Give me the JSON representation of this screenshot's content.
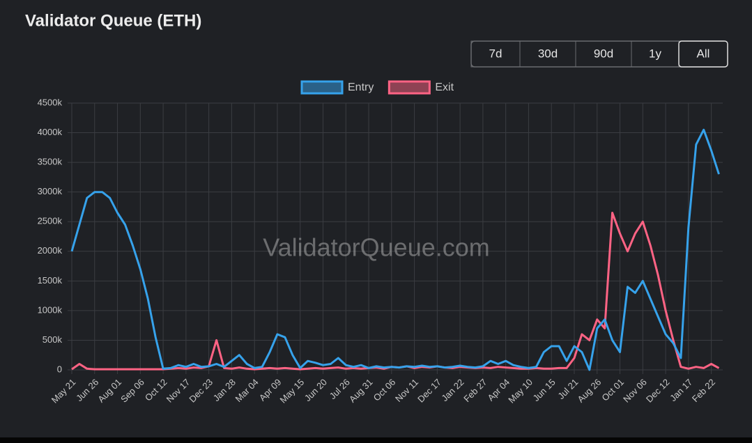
{
  "range_buttons": [
    "7d",
    "30d",
    "90d",
    "1y",
    "All"
  ],
  "active_button": "All",
  "chart_data": {
    "type": "line",
    "title": "Validator Queue (ETH)",
    "watermark": "ValidatorQueue.com",
    "categories": [
      "May 21",
      null,
      null,
      "Jun 26",
      null,
      null,
      "Aug 01",
      null,
      null,
      "Sep 06",
      null,
      null,
      "Oct 12",
      null,
      null,
      "Nov 17",
      null,
      null,
      "Dec 23",
      null,
      null,
      "Jan 28",
      null,
      null,
      "Mar 04",
      null,
      null,
      "Apr 09",
      null,
      null,
      "May 15",
      null,
      null,
      "Jun 20",
      null,
      null,
      "Jul 26",
      null,
      null,
      "Aug 31",
      null,
      null,
      "Oct 06",
      null,
      null,
      "Nov 11",
      null,
      null,
      "Dec 17",
      null,
      null,
      "Jan 22",
      null,
      null,
      "Feb 27",
      null,
      null,
      "Apr 04",
      null,
      null,
      "May 10",
      null,
      null,
      "Jun 15",
      null,
      null,
      "Jul 21",
      null,
      null,
      "Aug 26",
      null,
      null,
      "Oct 01",
      null,
      null,
      "Nov 06",
      null,
      null,
      "Dec 12",
      null,
      null,
      "Jan 17",
      null,
      null,
      "Feb 22",
      null
    ],
    "series": [
      {
        "name": "Entry",
        "color": "#36a2eb",
        "values": [
          2000,
          2450,
          2900,
          3000,
          3000,
          2900,
          2650,
          2450,
          2100,
          1700,
          1200,
          550,
          20,
          30,
          80,
          50,
          100,
          50,
          60,
          100,
          50,
          150,
          250,
          100,
          30,
          50,
          300,
          600,
          550,
          250,
          30,
          150,
          120,
          80,
          100,
          200,
          80,
          50,
          80,
          30,
          60,
          40,
          50,
          40,
          60,
          50,
          70,
          50,
          60,
          40,
          50,
          70,
          50,
          40,
          60,
          150,
          100,
          150,
          80,
          50,
          30,
          50,
          300,
          400,
          400,
          150,
          400,
          300,
          0,
          700,
          850,
          500,
          300,
          1400,
          1300,
          1500,
          1200,
          900,
          600,
          450,
          200,
          2400,
          3800,
          4050,
          3700,
          3300
        ]
      },
      {
        "name": "Exit",
        "color": "#ff6384",
        "values": [
          10,
          100,
          20,
          10,
          10,
          10,
          10,
          10,
          10,
          10,
          10,
          10,
          10,
          20,
          30,
          20,
          40,
          30,
          60,
          500,
          30,
          20,
          40,
          20,
          10,
          20,
          30,
          20,
          30,
          20,
          10,
          20,
          30,
          20,
          30,
          40,
          20,
          30,
          20,
          30,
          40,
          20,
          50,
          40,
          60,
          30,
          50,
          40,
          60,
          40,
          30,
          50,
          40,
          30,
          40,
          30,
          50,
          40,
          30,
          20,
          20,
          30,
          20,
          20,
          30,
          30,
          200,
          600,
          500,
          850,
          700,
          2650,
          2300,
          2000,
          2300,
          2500,
          2100,
          1600,
          1000,
          500,
          50,
          20,
          50,
          30,
          100,
          30
        ]
      }
    ],
    "ylim": [
      0,
      4500
    ],
    "yticks": [
      0,
      {
        "value": 500,
        "label": "500k"
      },
      {
        "value": 1000,
        "label": "1000k"
      },
      {
        "value": 1500,
        "label": "1500k"
      },
      {
        "value": 2000,
        "label": "2000k"
      },
      {
        "value": 2500,
        "label": "2500k"
      },
      {
        "value": 3000,
        "label": "3000k"
      },
      {
        "value": 3500,
        "label": "3500k"
      },
      {
        "value": 4000,
        "label": "4000k"
      },
      {
        "value": 4500,
        "label": "4500k"
      }
    ],
    "grid": true,
    "legend": "top"
  }
}
